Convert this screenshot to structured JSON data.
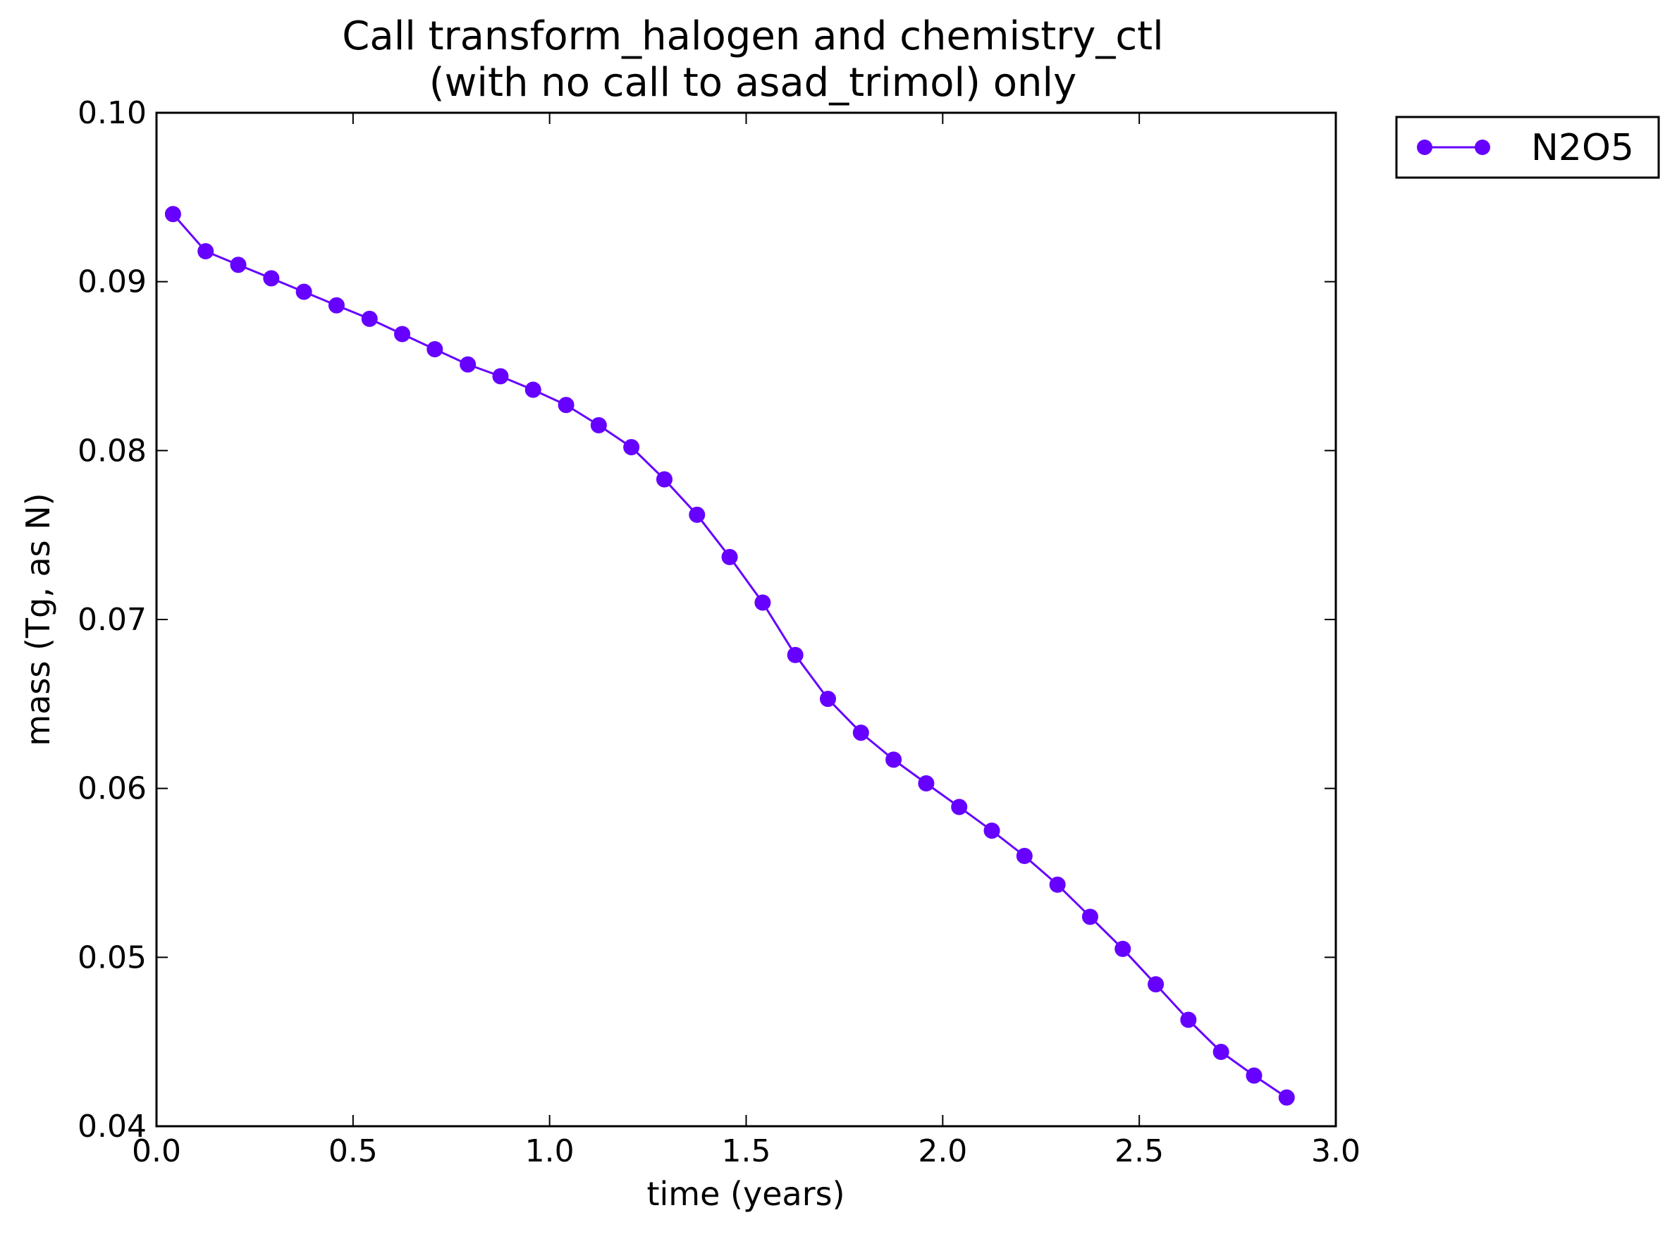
{
  "chart_data": {
    "type": "line",
    "title_line1": "Call transform_halogen and chemistry_ctl",
    "title_line2": "(with no call to asad_trimol) only",
    "xlabel": "time (years)",
    "ylabel": "mass (Tg, as N)",
    "xlim": [
      0.0,
      3.0
    ],
    "ylim": [
      0.04,
      0.1
    ],
    "xticks": [
      0.0,
      0.5,
      1.0,
      1.5,
      2.0,
      2.5,
      3.0
    ],
    "yticks": [
      0.04,
      0.05,
      0.06,
      0.07,
      0.08,
      0.09,
      0.1
    ],
    "xtick_labels": [
      "0.0",
      "0.5",
      "1.0",
      "1.5",
      "2.0",
      "2.5",
      "3.0"
    ],
    "ytick_labels": [
      "0.04",
      "0.05",
      "0.06",
      "0.07",
      "0.08",
      "0.09",
      "0.10"
    ],
    "grid": false,
    "legend_position": "outside top-right",
    "series": [
      {
        "name": "N2O5",
        "color": "#6600ff",
        "marker": "circle",
        "x": [
          0.042,
          0.125,
          0.208,
          0.292,
          0.375,
          0.458,
          0.542,
          0.625,
          0.708,
          0.792,
          0.875,
          0.958,
          1.042,
          1.125,
          1.208,
          1.292,
          1.375,
          1.458,
          1.542,
          1.625,
          1.708,
          1.792,
          1.875,
          1.958,
          2.042,
          2.125,
          2.208,
          2.292,
          2.375,
          2.458,
          2.542,
          2.625,
          2.708,
          2.792,
          2.875
        ],
        "values": [
          0.094,
          0.0918,
          0.091,
          0.0902,
          0.0894,
          0.0886,
          0.0878,
          0.0869,
          0.086,
          0.0851,
          0.0844,
          0.0836,
          0.0827,
          0.0815,
          0.0802,
          0.0783,
          0.0762,
          0.0737,
          0.071,
          0.0679,
          0.0653,
          0.0633,
          0.0617,
          0.0603,
          0.0589,
          0.0575,
          0.056,
          0.0543,
          0.0524,
          0.0505,
          0.0484,
          0.0463,
          0.0444,
          0.043,
          0.0417
        ]
      }
    ]
  }
}
